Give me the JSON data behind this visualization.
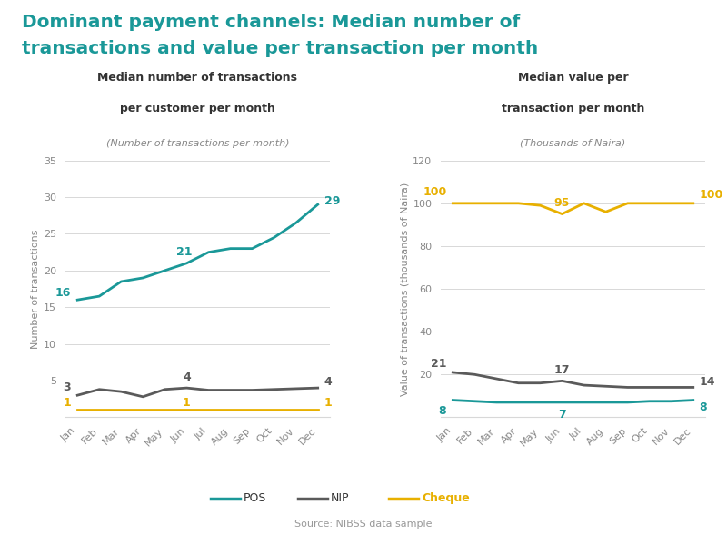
{
  "title_line1": "Dominant payment channels: Median number of",
  "title_line2": "transactions and value per transaction per month",
  "title_color": "#1a9898",
  "source": "Source: NIBSS data sample",
  "months": [
    "Jan",
    "Feb",
    "Mar",
    "Apr",
    "May",
    "Jun",
    "Jul",
    "Aug",
    "Sep",
    "Oct",
    "Nov",
    "Dec"
  ],
  "left_title1": "Median number of transactions",
  "left_title2": "per customer per month",
  "left_subtitle": "(Number of transactions per month)",
  "right_title1": "Median value per",
  "right_title2": "transaction per month",
  "right_subtitle": "(Thousands of Naira)",
  "left_ylabel": "Number of transactions",
  "right_ylabel": "Value of transactions (thousands of Naira)",
  "pos_left": [
    16,
    16.5,
    18.5,
    19,
    20,
    21,
    22.5,
    23,
    23,
    24.5,
    26.5,
    29
  ],
  "nip_left": [
    3,
    3.8,
    3.5,
    2.8,
    3.8,
    4,
    3.7,
    3.7,
    3.7,
    3.8,
    3.9,
    4
  ],
  "cheque_left": [
    1,
    1,
    1,
    1,
    1,
    1,
    1,
    1,
    1,
    1,
    1,
    1
  ],
  "pos_right": [
    8,
    7.5,
    7,
    7,
    7,
    7,
    7,
    7,
    7,
    7.5,
    7.5,
    8
  ],
  "nip_right": [
    21,
    20,
    18,
    16,
    16,
    17,
    15,
    14.5,
    14,
    14,
    14,
    14
  ],
  "cheque_right": [
    100,
    100,
    100,
    100,
    99,
    95,
    100,
    96,
    100,
    100,
    100,
    100
  ],
  "pos_color": "#1a9898",
  "nip_color": "#5a5a5a",
  "cheque_color": "#e8b000",
  "left_ylim": [
    0,
    35
  ],
  "left_yticks": [
    0,
    5,
    10,
    15,
    20,
    25,
    30,
    35
  ],
  "right_ylim": [
    0,
    120
  ],
  "right_yticks": [
    0,
    20,
    40,
    60,
    80,
    100,
    120
  ],
  "bg_color": "#ffffff",
  "grid_color": "#d8d8d8",
  "line_width": 2.0
}
